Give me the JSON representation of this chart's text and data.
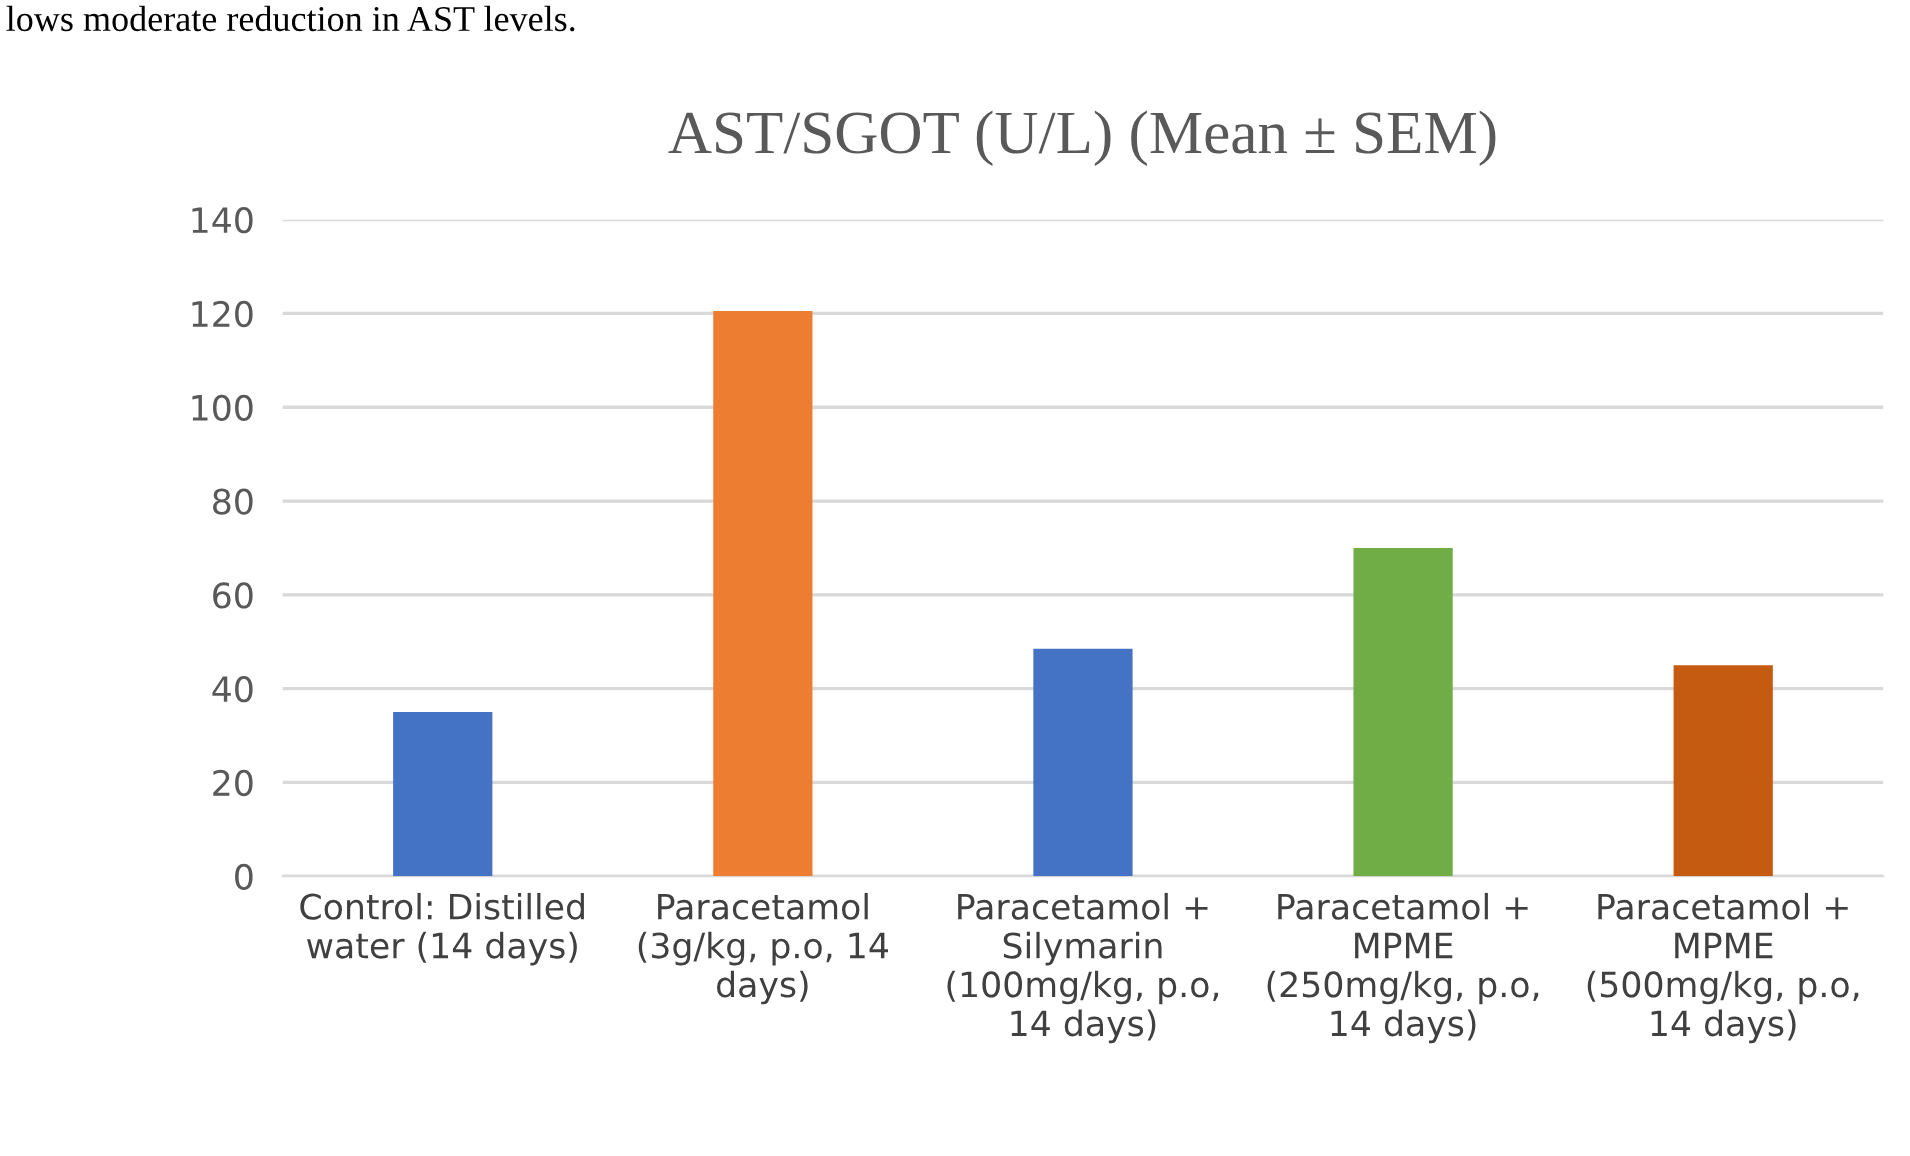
{
  "chart_data": {
    "type": "bar",
    "title": "AST/SGOT (U/L) (Mean ± SEM)",
    "categories": [
      "Control: Distilled\nwater (14 days)",
      "Paracetamol\n(3g/kg, p.o, 14\ndays)",
      "Paracetamol +\nSilymarin\n(100mg/kg, p.o,\n14 days)",
      "Paracetamol +\nMPME\n(250mg/kg, p.o,\n14 days)",
      "Paracetamol +\nMPME\n(500mg/kg, p.o,\n14 days)"
    ],
    "values": [
      35,
      120.5,
      48.5,
      70,
      45
    ],
    "colors": [
      "#4472c4",
      "#ed7d31",
      "#4472c4",
      "#70ad47",
      "#c55a11"
    ],
    "ylim": [
      0,
      140
    ],
    "yticks": [
      0,
      20,
      40,
      60,
      80,
      100,
      120,
      140
    ],
    "grid": "y",
    "annotations": [
      "lows moderate reduction in AST levels."
    ]
  }
}
